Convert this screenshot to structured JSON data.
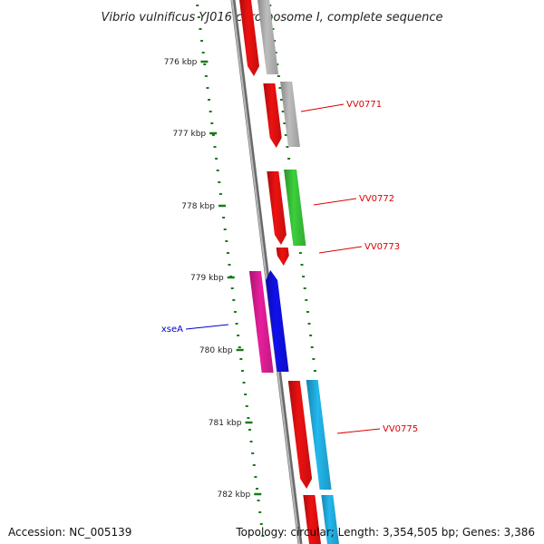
{
  "title": "Vibrio vulnificus YJ016 chromosome I, complete sequence",
  "ticks": [
    "776 kbp",
    "777 kbp",
    "778 kbp",
    "779 kbp",
    "780 kbp",
    "781 kbp",
    "782 kbp"
  ],
  "colors": {
    "backbone": "#808080",
    "tick": "#1a7a1a",
    "red": "#ee1111",
    "grey": "#bdbdbd",
    "green": "#3ccf3c",
    "magenta": "#e81e9c",
    "blue": "#1010ee",
    "cyan": "#22b8ee",
    "label_red": "#dd0000",
    "label_blue": "#0000cc"
  },
  "gene_labels": [
    {
      "text": "VV0771",
      "color": "label_red"
    },
    {
      "text": "VV0772",
      "color": "label_red"
    },
    {
      "text": "VV0773",
      "color": "label_red"
    },
    {
      "text": "xseA",
      "color": "label_blue"
    },
    {
      "text": "VV0775",
      "color": "label_red"
    }
  ],
  "footer": {
    "accession": "Accession: NC_005139",
    "summary": "Topology: circular; Length: 3,354,505 bp; Genes: 3,386"
  }
}
